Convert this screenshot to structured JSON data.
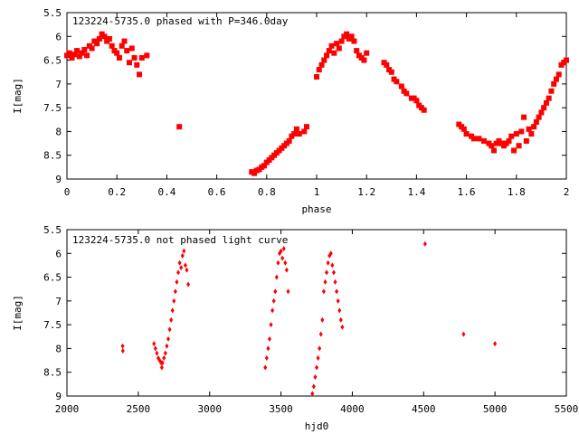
{
  "chart_data": [
    {
      "type": "scatter",
      "title": "123224-5735.0 phased with P=346.0day",
      "xlabel": "phase",
      "ylabel": "I[mag]",
      "xlim": [
        0,
        2
      ],
      "ylim": [
        5.5,
        9
      ],
      "y_inverted": true,
      "x_ticks": [
        "0",
        "0.2",
        "0.4",
        "0.6",
        "0.8",
        "1",
        "1.2",
        "1.4",
        "1.6",
        "1.8",
        "2"
      ],
      "y_ticks": [
        "5.5",
        "6",
        "6.5",
        "7",
        "7.5",
        "8",
        "8.5",
        "9"
      ],
      "marker_color": "#ff0000",
      "marker": "filled-square",
      "series": [
        {
          "points": [
            [
              0.0,
              6.4
            ],
            [
              0.01,
              6.35
            ],
            [
              0.02,
              6.45
            ],
            [
              0.03,
              6.38
            ],
            [
              0.04,
              6.3
            ],
            [
              0.05,
              6.42
            ],
            [
              0.06,
              6.35
            ],
            [
              0.07,
              6.28
            ],
            [
              0.08,
              6.4
            ],
            [
              0.09,
              6.2
            ],
            [
              0.1,
              6.25
            ],
            [
              0.11,
              6.1
            ],
            [
              0.12,
              6.15
            ],
            [
              0.13,
              6.05
            ],
            [
              0.14,
              5.95
            ],
            [
              0.15,
              6.0
            ],
            [
              0.16,
              6.1
            ],
            [
              0.17,
              6.05
            ],
            [
              0.18,
              6.2
            ],
            [
              0.19,
              6.3
            ],
            [
              0.2,
              6.35
            ],
            [
              0.21,
              6.45
            ],
            [
              0.22,
              6.2
            ],
            [
              0.23,
              6.1
            ],
            [
              0.24,
              6.3
            ],
            [
              0.25,
              6.55
            ],
            [
              0.26,
              6.25
            ],
            [
              0.27,
              6.45
            ],
            [
              0.28,
              6.6
            ],
            [
              0.29,
              6.8
            ],
            [
              0.3,
              6.45
            ],
            [
              0.32,
              6.4
            ],
            [
              0.45,
              7.9
            ],
            [
              0.74,
              8.85
            ],
            [
              0.75,
              8.88
            ],
            [
              0.76,
              8.82
            ],
            [
              0.77,
              8.8
            ],
            [
              0.78,
              8.75
            ],
            [
              0.79,
              8.72
            ],
            [
              0.8,
              8.65
            ],
            [
              0.81,
              8.6
            ],
            [
              0.82,
              8.55
            ],
            [
              0.83,
              8.5
            ],
            [
              0.84,
              8.45
            ],
            [
              0.85,
              8.4
            ],
            [
              0.86,
              8.35
            ],
            [
              0.87,
              8.3
            ],
            [
              0.88,
              8.25
            ],
            [
              0.89,
              8.2
            ],
            [
              0.9,
              8.1
            ],
            [
              0.91,
              8.05
            ],
            [
              0.92,
              7.95
            ],
            [
              0.93,
              8.05
            ],
            [
              0.95,
              8.0
            ],
            [
              0.96,
              7.9
            ],
            [
              1.0,
              6.85
            ],
            [
              1.01,
              6.7
            ],
            [
              1.02,
              6.6
            ],
            [
              1.03,
              6.5
            ],
            [
              1.04,
              6.4
            ],
            [
              1.05,
              6.3
            ],
            [
              1.06,
              6.2
            ],
            [
              1.07,
              6.35
            ],
            [
              1.08,
              6.15
            ],
            [
              1.09,
              6.25
            ],
            [
              1.1,
              6.1
            ],
            [
              1.11,
              6.0
            ],
            [
              1.12,
              5.95
            ],
            [
              1.13,
              6.05
            ],
            [
              1.14,
              6.0
            ],
            [
              1.15,
              6.1
            ],
            [
              1.16,
              6.3
            ],
            [
              1.17,
              6.4
            ],
            [
              1.18,
              6.45
            ],
            [
              1.19,
              6.5
            ],
            [
              1.2,
              6.35
            ],
            [
              1.27,
              6.55
            ],
            [
              1.28,
              6.6
            ],
            [
              1.29,
              6.7
            ],
            [
              1.3,
              6.75
            ],
            [
              1.31,
              6.9
            ],
            [
              1.32,
              6.95
            ],
            [
              1.34,
              7.05
            ],
            [
              1.35,
              7.15
            ],
            [
              1.36,
              7.2
            ],
            [
              1.38,
              7.3
            ],
            [
              1.39,
              7.3
            ],
            [
              1.4,
              7.35
            ],
            [
              1.41,
              7.45
            ],
            [
              1.42,
              7.5
            ],
            [
              1.43,
              7.55
            ],
            [
              1.57,
              7.85
            ],
            [
              1.58,
              7.9
            ],
            [
              1.59,
              7.95
            ],
            [
              1.6,
              8.05
            ],
            [
              1.62,
              8.1
            ],
            [
              1.63,
              8.15
            ],
            [
              1.65,
              8.15
            ],
            [
              1.67,
              8.2
            ],
            [
              1.69,
              8.25
            ],
            [
              1.7,
              8.3
            ],
            [
              1.71,
              8.4
            ],
            [
              1.72,
              8.25
            ],
            [
              1.73,
              8.2
            ],
            [
              1.74,
              8.25
            ],
            [
              1.75,
              8.3
            ],
            [
              1.76,
              8.25
            ],
            [
              1.77,
              8.2
            ],
            [
              1.78,
              8.1
            ],
            [
              1.79,
              8.4
            ],
            [
              1.8,
              8.05
            ],
            [
              1.81,
              8.3
            ],
            [
              1.82,
              8.0
            ],
            [
              1.83,
              7.7
            ],
            [
              1.84,
              8.2
            ],
            [
              1.85,
              7.95
            ],
            [
              1.86,
              8.05
            ],
            [
              1.87,
              7.9
            ],
            [
              1.88,
              7.8
            ],
            [
              1.89,
              7.7
            ],
            [
              1.9,
              7.6
            ],
            [
              1.91,
              7.5
            ],
            [
              1.92,
              7.4
            ],
            [
              1.93,
              7.3
            ],
            [
              1.94,
              7.15
            ],
            [
              1.95,
              7.0
            ],
            [
              1.96,
              6.9
            ],
            [
              1.97,
              6.8
            ],
            [
              1.98,
              6.6
            ],
            [
              1.99,
              6.55
            ],
            [
              2.0,
              6.5
            ]
          ]
        }
      ]
    },
    {
      "type": "scatter",
      "title": "123224-5735.0 not phased light curve",
      "xlabel": "hjd0",
      "ylabel": "I[mag]",
      "xlim": [
        2000,
        5500
      ],
      "ylim": [
        5.5,
        9
      ],
      "y_inverted": true,
      "x_ticks": [
        "2000",
        "2500",
        "3000",
        "3500",
        "4000",
        "4500",
        "5000",
        "5500"
      ],
      "y_ticks": [
        "5.5",
        "6",
        "6.5",
        "7",
        "7.5",
        "8",
        "8.5",
        "9"
      ],
      "marker_color": "#ff0000",
      "marker": "filled-diamond",
      "series": [
        {
          "points": [
            [
              2390,
              7.95
            ],
            [
              2392,
              8.05
            ],
            [
              2610,
              7.9
            ],
            [
              2620,
              8.0
            ],
            [
              2630,
              8.1
            ],
            [
              2640,
              8.2
            ],
            [
              2650,
              8.25
            ],
            [
              2660,
              8.3
            ],
            [
              2665,
              8.4
            ],
            [
              2670,
              8.3
            ],
            [
              2680,
              8.2
            ],
            [
              2690,
              8.1
            ],
            [
              2700,
              7.95
            ],
            [
              2710,
              7.8
            ],
            [
              2720,
              7.6
            ],
            [
              2730,
              7.4
            ],
            [
              2740,
              7.2
            ],
            [
              2750,
              7.0
            ],
            [
              2760,
              6.8
            ],
            [
              2770,
              6.6
            ],
            [
              2780,
              6.4
            ],
            [
              2790,
              6.2
            ],
            [
              2800,
              6.3
            ],
            [
              2810,
              6.05
            ],
            [
              2820,
              5.95
            ],
            [
              2830,
              6.25
            ],
            [
              2840,
              6.35
            ],
            [
              2850,
              6.65
            ],
            [
              3390,
              8.4
            ],
            [
              3400,
              8.2
            ],
            [
              3410,
              8.0
            ],
            [
              3420,
              7.8
            ],
            [
              3430,
              7.5
            ],
            [
              3440,
              7.2
            ],
            [
              3450,
              7.0
            ],
            [
              3460,
              6.8
            ],
            [
              3470,
              6.5
            ],
            [
              3480,
              6.2
            ],
            [
              3490,
              6.0
            ],
            [
              3500,
              5.95
            ],
            [
              3510,
              6.1
            ],
            [
              3520,
              5.9
            ],
            [
              3530,
              6.2
            ],
            [
              3540,
              6.35
            ],
            [
              3550,
              6.8
            ],
            [
              3720,
              8.95
            ],
            [
              3730,
              8.8
            ],
            [
              3740,
              8.6
            ],
            [
              3750,
              8.4
            ],
            [
              3760,
              8.2
            ],
            [
              3770,
              8.0
            ],
            [
              3780,
              7.7
            ],
            [
              3790,
              7.4
            ],
            [
              3800,
              6.8
            ],
            [
              3810,
              6.6
            ],
            [
              3820,
              6.4
            ],
            [
              3830,
              6.2
            ],
            [
              3840,
              6.05
            ],
            [
              3850,
              6.0
            ],
            [
              3860,
              6.25
            ],
            [
              3870,
              6.4
            ],
            [
              3880,
              6.6
            ],
            [
              3890,
              6.8
            ],
            [
              3900,
              7.0
            ],
            [
              3910,
              7.2
            ],
            [
              3920,
              7.4
            ],
            [
              3930,
              7.55
            ],
            [
              4510,
              5.8
            ],
            [
              4780,
              7.7
            ],
            [
              5000,
              7.9
            ]
          ]
        }
      ]
    }
  ]
}
